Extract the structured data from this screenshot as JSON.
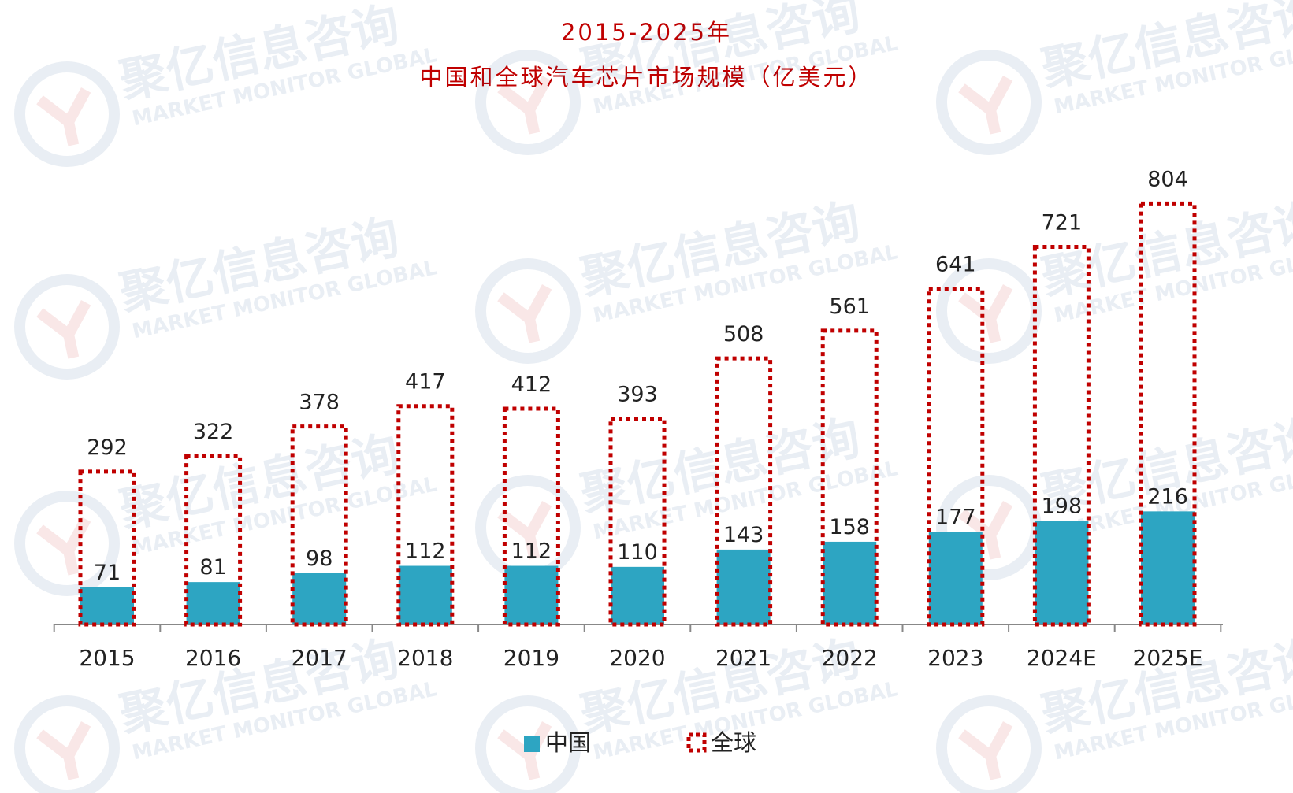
{
  "watermark": {
    "brand_cn": "聚亿信息咨询",
    "brand_en": "MARKET MONITOR GLOBAL",
    "logo_icon": "mmg-logo-icon"
  },
  "colors": {
    "china": "#2da5c2",
    "global": "#c00000",
    "title": "#c00000",
    "axis": "#888888",
    "text": "#222222"
  },
  "chart_data": {
    "type": "bar",
    "title": "2015-2025年",
    "subtitle": "中国和全球汽车芯片市场规模（亿美元）",
    "categories": [
      "2015",
      "2016",
      "2017",
      "2018",
      "2019",
      "2020",
      "2021",
      "2022",
      "2023",
      "2024E",
      "2025E"
    ],
    "series": [
      {
        "name": "中国",
        "values": [
          71,
          81,
          98,
          112,
          112,
          110,
          143,
          158,
          177,
          198,
          216
        ],
        "style": "solid-fill"
      },
      {
        "name": "全球",
        "values": [
          292,
          322,
          378,
          417,
          412,
          393,
          508,
          561,
          641,
          721,
          804
        ],
        "style": "dotted-outline"
      }
    ],
    "overlapped": true,
    "xlabel": "",
    "ylabel": "",
    "ylim": [
      0,
      804
    ],
    "y_axis_visible": false,
    "grid": false,
    "data_labels": true,
    "legend_position": "bottom-center"
  }
}
